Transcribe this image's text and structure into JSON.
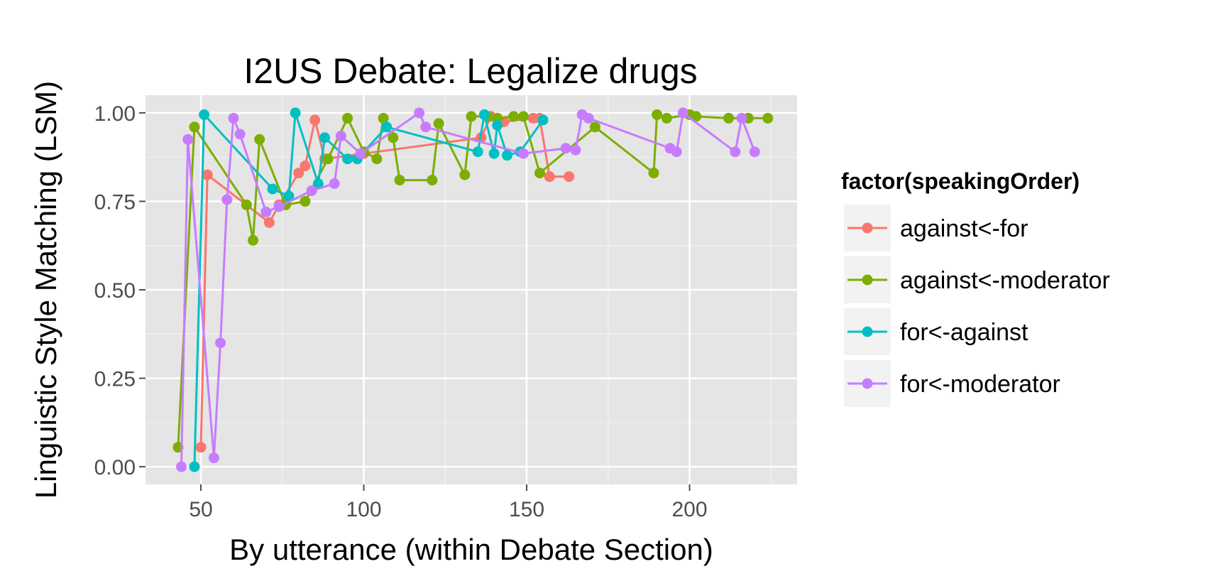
{
  "chart_data": {
    "type": "line",
    "title": "I2US Debate: Legalize drugs",
    "xlabel": "By utterance (within Debate Section)",
    "ylabel": "Linguistic Style Matching (LSM)",
    "xlim": [
      33,
      233
    ],
    "ylim": [
      -0.05,
      1.05
    ],
    "x_ticks": [
      50,
      100,
      150,
      200
    ],
    "x_tick_labels": [
      "50",
      "100",
      "150",
      "200"
    ],
    "y_ticks": [
      0,
      0.25,
      0.5,
      0.75,
      1
    ],
    "y_tick_labels": [
      "0.00",
      "0.25",
      "0.50",
      "0.75",
      "1.00"
    ],
    "grid": true,
    "legend": {
      "title": "factor(speakingOrder)",
      "position": "right"
    },
    "series": [
      {
        "name": "against<-for",
        "color": "#F8766D",
        "x": [
          50,
          52,
          71,
          74,
          80,
          82,
          85,
          88,
          100,
          136,
          139,
          143,
          152,
          154,
          157,
          163
        ],
        "y": [
          0.055,
          0.825,
          0.69,
          0.74,
          0.83,
          0.85,
          0.98,
          0.87,
          0.885,
          0.93,
          0.99,
          0.975,
          0.985,
          0.985,
          0.82,
          0.82
        ]
      },
      {
        "name": "against<-moderator",
        "color": "#7CAE00",
        "x": [
          43,
          48,
          64,
          66,
          68,
          76,
          82,
          89,
          95,
          100,
          104,
          106,
          109,
          111,
          121,
          123,
          131,
          133,
          138,
          141,
          146,
          149,
          154,
          171,
          189,
          190,
          193,
          200,
          202,
          212,
          218,
          224
        ],
        "y": [
          0.055,
          0.96,
          0.74,
          0.64,
          0.925,
          0.74,
          0.75,
          0.87,
          0.985,
          0.89,
          0.87,
          0.985,
          0.93,
          0.81,
          0.81,
          0.97,
          0.825,
          0.99,
          0.99,
          0.985,
          0.99,
          0.99,
          0.83,
          0.96,
          0.83,
          0.995,
          0.985,
          0.995,
          0.99,
          0.985,
          0.985,
          0.985
        ]
      },
      {
        "name": "for<-against",
        "color": "#00BFC4",
        "x": [
          48,
          51,
          72,
          77,
          79,
          86,
          88,
          95,
          98,
          107,
          135,
          137,
          140,
          141,
          144,
          148,
          155
        ],
        "y": [
          0.0,
          0.995,
          0.785,
          0.765,
          1.0,
          0.8,
          0.93,
          0.87,
          0.87,
          0.96,
          0.89,
          0.995,
          0.885,
          0.965,
          0.88,
          0.89,
          0.98
        ]
      },
      {
        "name": "for<-moderator",
        "color": "#C77CFF",
        "x": [
          44,
          46,
          54,
          56,
          58,
          60,
          62,
          70,
          74,
          84,
          91,
          93,
          99,
          117,
          119,
          149,
          162,
          165,
          167,
          169,
          194,
          196,
          198,
          214,
          216,
          220
        ],
        "y": [
          0.0,
          0.925,
          0.025,
          0.35,
          0.755,
          0.985,
          0.94,
          0.72,
          0.735,
          0.78,
          0.8,
          0.935,
          0.885,
          1.0,
          0.96,
          0.885,
          0.9,
          0.895,
          0.995,
          0.985,
          0.9,
          0.89,
          1.0,
          0.89,
          0.985,
          0.89
        ]
      }
    ]
  }
}
